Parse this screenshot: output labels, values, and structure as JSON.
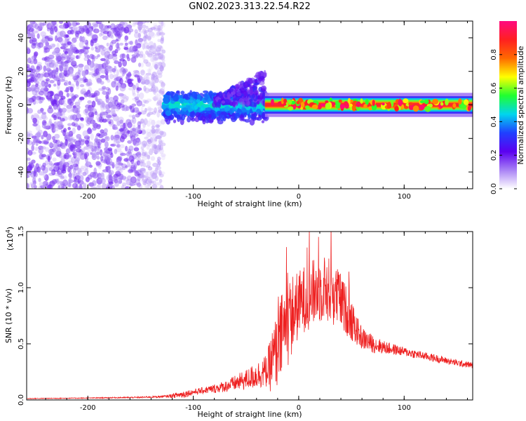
{
  "figure_title": "GN02.2023.313.22.54.R22",
  "chart_data": [
    {
      "type": "heatmap",
      "title": "",
      "xlabel": "Height of straight line (km)",
      "ylabel": "Frequency (Hz)",
      "xlim": [
        -258,
        165
      ],
      "ylim": [
        -50,
        50
      ],
      "xticks": [
        -200,
        -100,
        0,
        100
      ],
      "yticks": [
        -40,
        -20,
        0,
        20,
        40
      ],
      "colorbar": {
        "label": "Normalized spectral amplitude",
        "range": [
          0,
          1
        ],
        "ticks": [
          0.0,
          0.2,
          0.4,
          0.6,
          0.8
        ],
        "colors": [
          "#ffffff",
          "#a982f5",
          "#5b00f0",
          "#2040ff",
          "#00d5ee",
          "#20ff30",
          "#ffff00",
          "#ff6a00",
          "#ff2020",
          "#ff0a80"
        ]
      },
      "regions": [
        {
          "name": "noise",
          "x_range": [
            -258,
            -128
          ],
          "freq_range": [
            -50,
            50
          ],
          "amplitude": [
            0.05,
            0.2
          ]
        },
        {
          "name": "onset",
          "x_range": [
            -128,
            -30
          ],
          "freq_center": 0,
          "freq_halfwidth": [
            6,
            12
          ],
          "amplitude": [
            0.2,
            0.45
          ]
        },
        {
          "name": "burst",
          "x_range": [
            -80,
            -32
          ],
          "freq_center": [
            5,
            20
          ],
          "amplitude": [
            0.15,
            0.3
          ]
        },
        {
          "name": "carrier",
          "x_range": [
            -32,
            165
          ],
          "freq_center": 0,
          "freq_halfwidth": [
            2,
            4
          ],
          "amplitude": [
            0.6,
            1.0
          ]
        }
      ]
    },
    {
      "type": "line",
      "title": "",
      "xlabel": "Height of straight line (km)",
      "ylabel": "SNR (10 * v/v)",
      "y_multiplier": "(x10",
      "y_multiplier_exp": "4",
      "y_multiplier_close": ")",
      "xlim": [
        -258,
        165
      ],
      "ylim": [
        0,
        15000
      ],
      "xticks": [
        -200,
        -100,
        0,
        100
      ],
      "yticks": [
        0,
        5000,
        10000,
        15000
      ],
      "ytick_labels": [
        "0.0",
        "0.5",
        "1.0",
        "1.5"
      ],
      "series": [
        {
          "color": "#ee2020",
          "x": [
            -258,
            -200,
            -150,
            -125,
            -110,
            -100,
            -90,
            -80,
            -70,
            -60,
            -50,
            -40,
            -30,
            -25,
            -20,
            -15,
            -10,
            -5,
            0,
            5,
            10,
            15,
            20,
            25,
            30,
            35,
            40,
            45,
            50,
            55,
            60,
            70,
            80,
            90,
            100,
            110,
            120,
            130,
            140,
            150,
            160,
            165
          ],
          "values": [
            120,
            170,
            230,
            320,
            500,
            700,
            850,
            1000,
            1200,
            1500,
            1800,
            2200,
            2600,
            3500,
            4500,
            6000,
            7000,
            7800,
            8500,
            9000,
            9300,
            9600,
            9800,
            10000,
            9700,
            9300,
            8800,
            8000,
            7000,
            6200,
            5500,
            5000,
            4700,
            4500,
            4300,
            4100,
            3900,
            3700,
            3500,
            3300,
            3150,
            3100
          ],
          "noise_amplitude": [
            30,
            40,
            60,
            100,
            350,
            250,
            300,
            400,
            500,
            700,
            900,
            1200,
            1500,
            3000,
            3500,
            4000,
            4000,
            3500,
            3000,
            3000,
            3000,
            3000,
            3000,
            3000,
            3000,
            2800,
            2500,
            2200,
            1800,
            1300,
            1000,
            800,
            600,
            500,
            400,
            400,
            350,
            350,
            300,
            300,
            280,
            280
          ]
        }
      ]
    }
  ]
}
